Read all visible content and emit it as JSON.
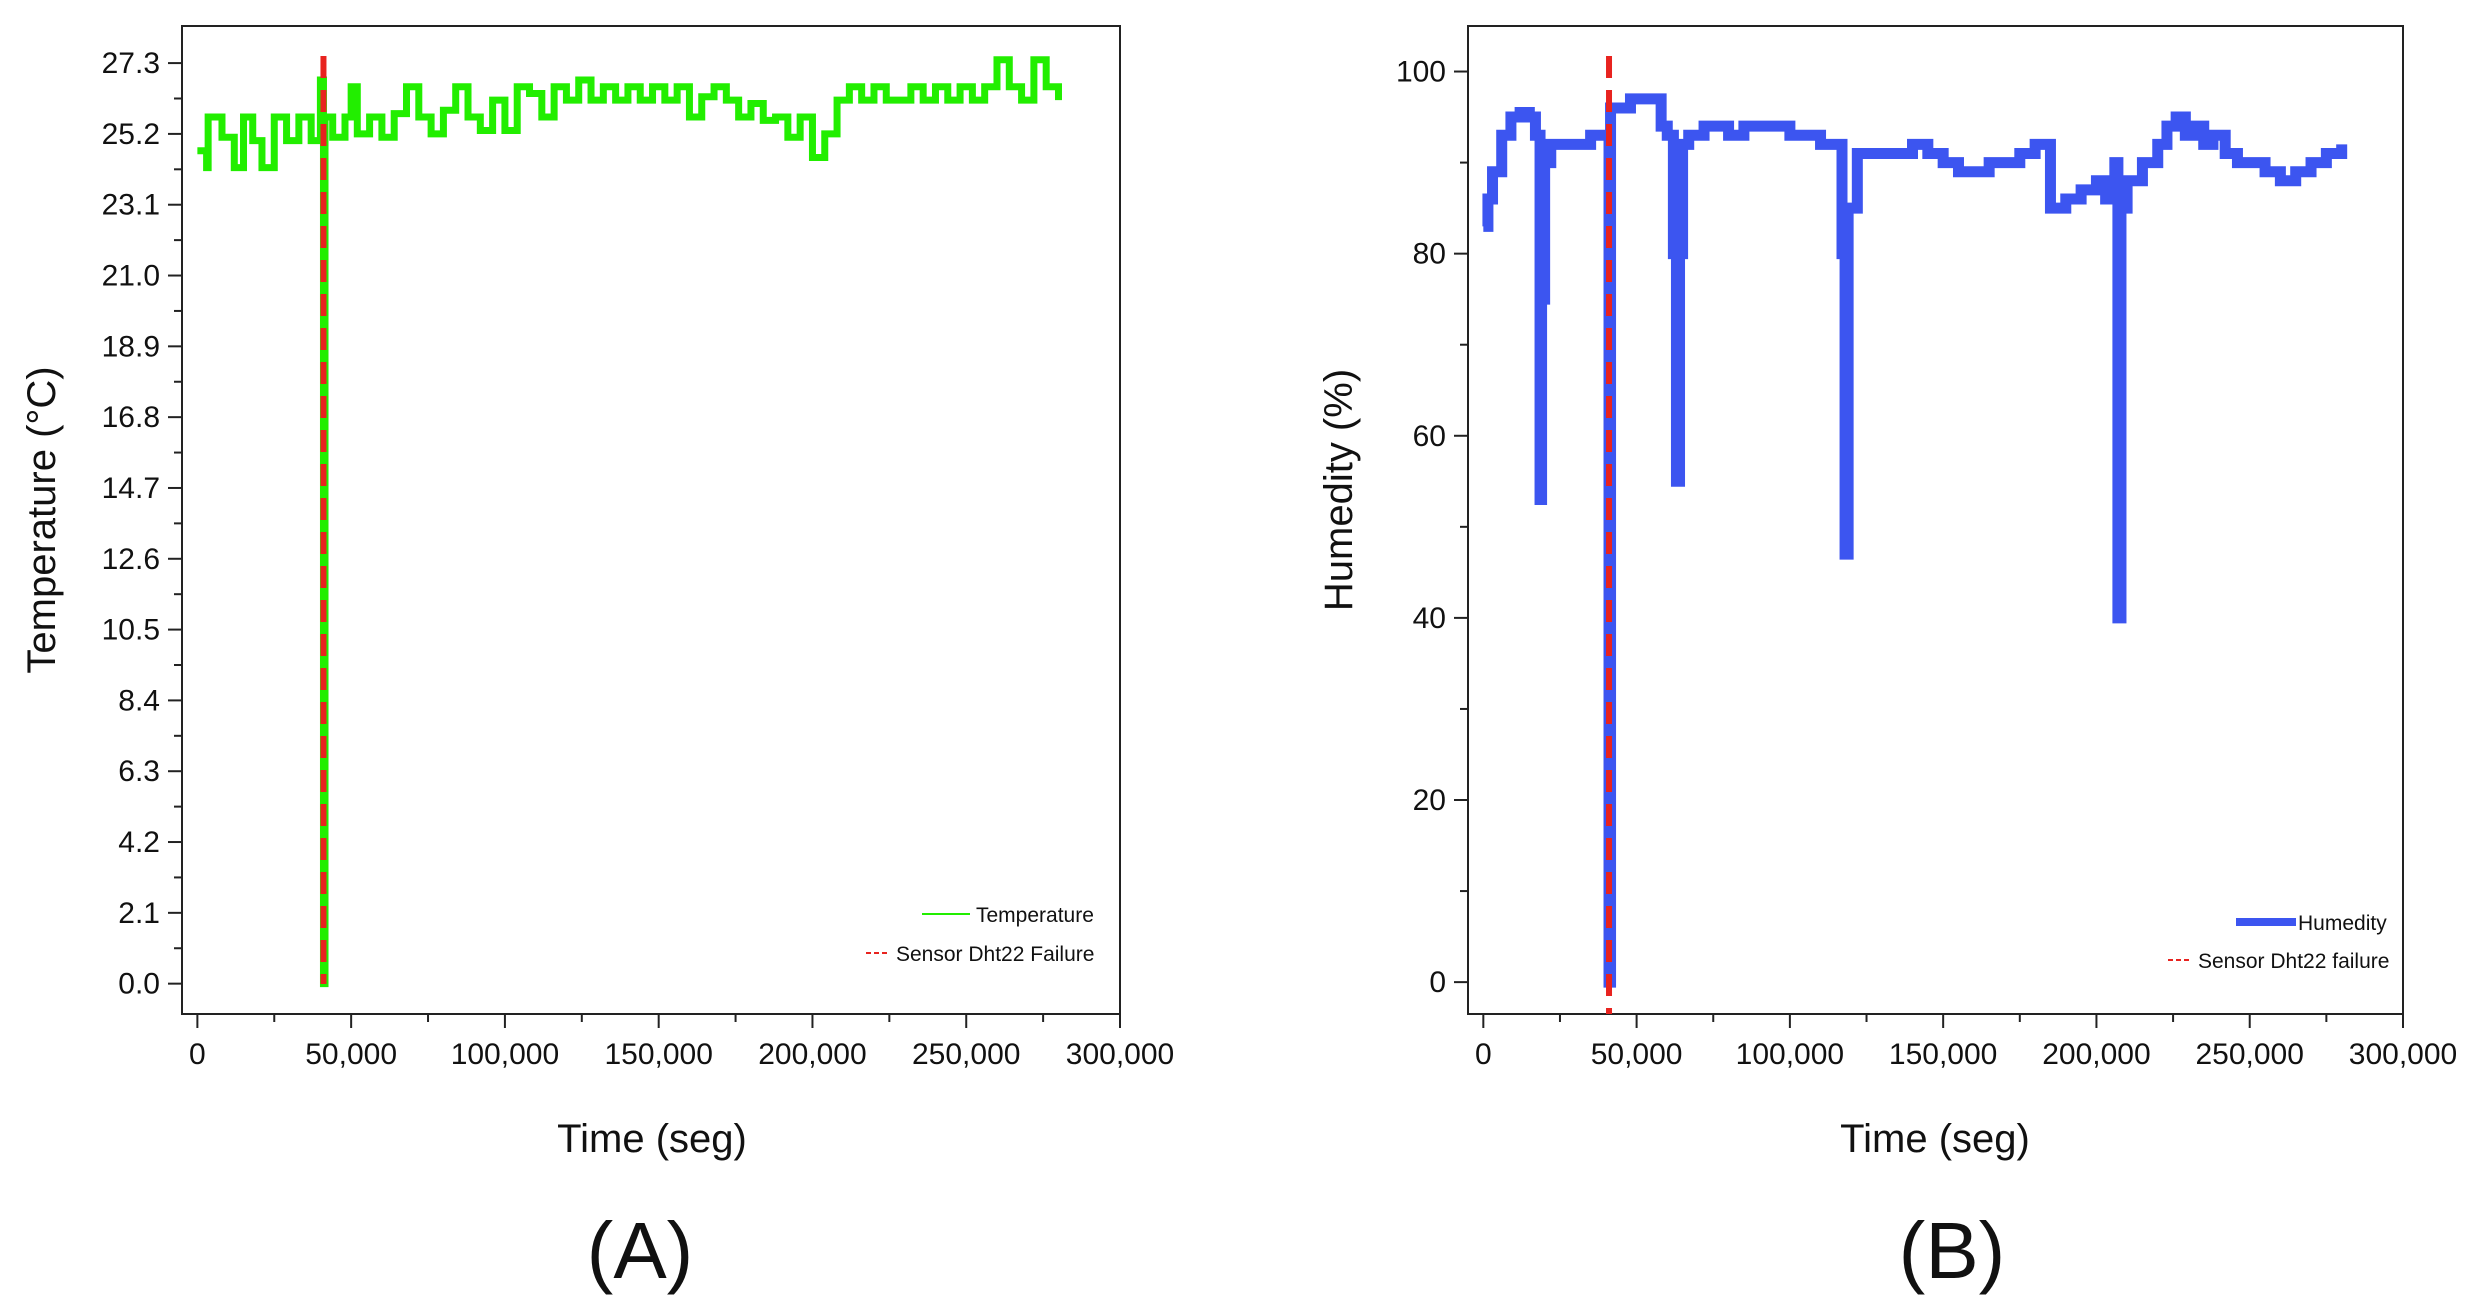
{
  "chart_data": [
    {
      "type": "line",
      "panel_label": "(A)",
      "xlabel": "Time (seg)",
      "ylabel": "Temperature (°C)",
      "xlim": [
        -5000,
        300000
      ],
      "ylim": [
        -0.9,
        28.4
      ],
      "xticks": [
        0,
        50000,
        100000,
        150000,
        200000,
        250000,
        300000
      ],
      "xtick_labels": [
        "0",
        "50,000",
        "100,000",
        "150,000",
        "200,000",
        "250,000",
        "300,000"
      ],
      "yticks": [
        0.0,
        2.1,
        4.2,
        6.3,
        8.4,
        10.5,
        12.6,
        14.7,
        16.8,
        18.9,
        21.0,
        23.1,
        25.2,
        27.3
      ],
      "ytick_labels": [
        "0.0",
        "2.1",
        "4.2",
        "6.3",
        "8.4",
        "10.5",
        "12.6",
        "14.7",
        "16.8",
        "18.9",
        "21.0",
        "23.1",
        "25.2",
        "27.3"
      ],
      "legend_position": "bottom-right",
      "colors": {
        "temperature": "#22ee00",
        "failure": "#e8231f"
      },
      "series": [
        {
          "name": "Temperature",
          "style": "solid-thin",
          "x": [
            0,
            3000,
            3500,
            8000,
            12000,
            15000,
            18000,
            21000,
            25000,
            29000,
            33000,
            37000,
            40000,
            41000,
            41500,
            44000,
            48000,
            50000,
            52000,
            56000,
            60000,
            64000,
            68000,
            72000,
            76000,
            80000,
            84000,
            88000,
            92000,
            96000,
            100000,
            104000,
            108000,
            112000,
            116000,
            120000,
            124000,
            128000,
            132000,
            136000,
            140000,
            144000,
            148000,
            152000,
            156000,
            160000,
            164000,
            168000,
            172000,
            176000,
            180000,
            184000,
            188000,
            192000,
            196000,
            200000,
            204000,
            208000,
            212000,
            216000,
            220000,
            224000,
            228000,
            232000,
            236000,
            240000,
            244000,
            248000,
            252000,
            256000,
            260000,
            264000,
            268000,
            272000,
            276000,
            280000
          ],
          "values": [
            24.7,
            24.2,
            25.7,
            25.1,
            24.2,
            25.7,
            25.0,
            24.2,
            25.7,
            25.0,
            25.7,
            25.0,
            26.8,
            0.0,
            25.7,
            25.1,
            25.7,
            26.6,
            25.2,
            25.7,
            25.1,
            25.8,
            26.6,
            25.7,
            25.2,
            25.9,
            26.6,
            25.7,
            25.3,
            26.2,
            25.3,
            26.6,
            26.4,
            25.7,
            26.6,
            26.2,
            26.8,
            26.2,
            26.6,
            26.2,
            26.6,
            26.2,
            26.6,
            26.2,
            26.6,
            25.7,
            26.3,
            26.6,
            26.2,
            25.7,
            26.1,
            25.6,
            25.7,
            25.1,
            25.7,
            24.5,
            25.2,
            26.2,
            26.6,
            26.2,
            26.6,
            26.2,
            26.2,
            26.6,
            26.2,
            26.6,
            26.2,
            26.6,
            26.2,
            26.6,
            27.4,
            26.6,
            26.2,
            27.4,
            26.6,
            26.2
          ]
        },
        {
          "name": "Sensor Dht22 Failure",
          "style": "dashed",
          "x": [
            41000,
            41000
          ],
          "values": [
            -0.9,
            28.4
          ]
        }
      ]
    },
    {
      "type": "line",
      "panel_label": "(B)",
      "xlabel": "Time (seg)",
      "ylabel": "Humedity (%)",
      "xlim": [
        -5000,
        300000
      ],
      "ylim": [
        -3.5,
        105
      ],
      "xticks": [
        0,
        50000,
        100000,
        150000,
        200000,
        250000,
        300000
      ],
      "xtick_labels": [
        "0",
        "50,000",
        "100,000",
        "150,000",
        "200,000",
        "250,000",
        "300,000"
      ],
      "yticks": [
        0,
        20,
        40,
        60,
        80,
        100
      ],
      "ytick_labels": [
        "0",
        "20",
        "40",
        "60",
        "80",
        "100"
      ],
      "legend_position": "bottom-right",
      "colors": {
        "humidity": "#3c55f0",
        "failure": "#e8231f"
      },
      "series": [
        {
          "name": "Humedity",
          "style": "solid-thick",
          "x": [
            0,
            1500,
            3000,
            6000,
            9000,
            12000,
            15000,
            17000,
            18500,
            19000,
            20000,
            22000,
            25000,
            30000,
            35000,
            40000,
            41000,
            41500,
            42500,
            48000,
            52000,
            58000,
            60000,
            62000,
            63000,
            64000,
            65000,
            67000,
            72000,
            76000,
            80000,
            85000,
            90000,
            95000,
            100000,
            105000,
            110000,
            115000,
            117000,
            118000,
            119000,
            122000,
            130000,
            135000,
            138000,
            140000,
            145000,
            150000,
            155000,
            160000,
            165000,
            170000,
            175000,
            180000,
            185000,
            190000,
            195000,
            200000,
            203000,
            206000,
            207000,
            208000,
            210000,
            215000,
            220000,
            223000,
            226000,
            229000,
            232000,
            235000,
            238000,
            242000,
            246000,
            250000,
            255000,
            260000,
            265000,
            270000,
            275000,
            280000
          ],
          "values": [
            83,
            86,
            89,
            93,
            95,
            95.5,
            95,
            93,
            53,
            75,
            90,
            92,
            92,
            92,
            93,
            93,
            0,
            96,
            96,
            97,
            97,
            94,
            93,
            80,
            55,
            80,
            92,
            93,
            94,
            94,
            93,
            94,
            94,
            94,
            93,
            93,
            92,
            92,
            80,
            47,
            85,
            91,
            91,
            91,
            91,
            92,
            91,
            90,
            89,
            89,
            90,
            90,
            91,
            92,
            85,
            86,
            87,
            88,
            86,
            90,
            40,
            85,
            88,
            90,
            92,
            94,
            95,
            93,
            94,
            92,
            93,
            91,
            90,
            90,
            89,
            88,
            89,
            90,
            91,
            92
          ]
        },
        {
          "name": "Sensor Dht22 failure",
          "style": "dashed",
          "x": [
            41000,
            41000
          ],
          "values": [
            -3.5,
            105
          ]
        }
      ]
    }
  ]
}
